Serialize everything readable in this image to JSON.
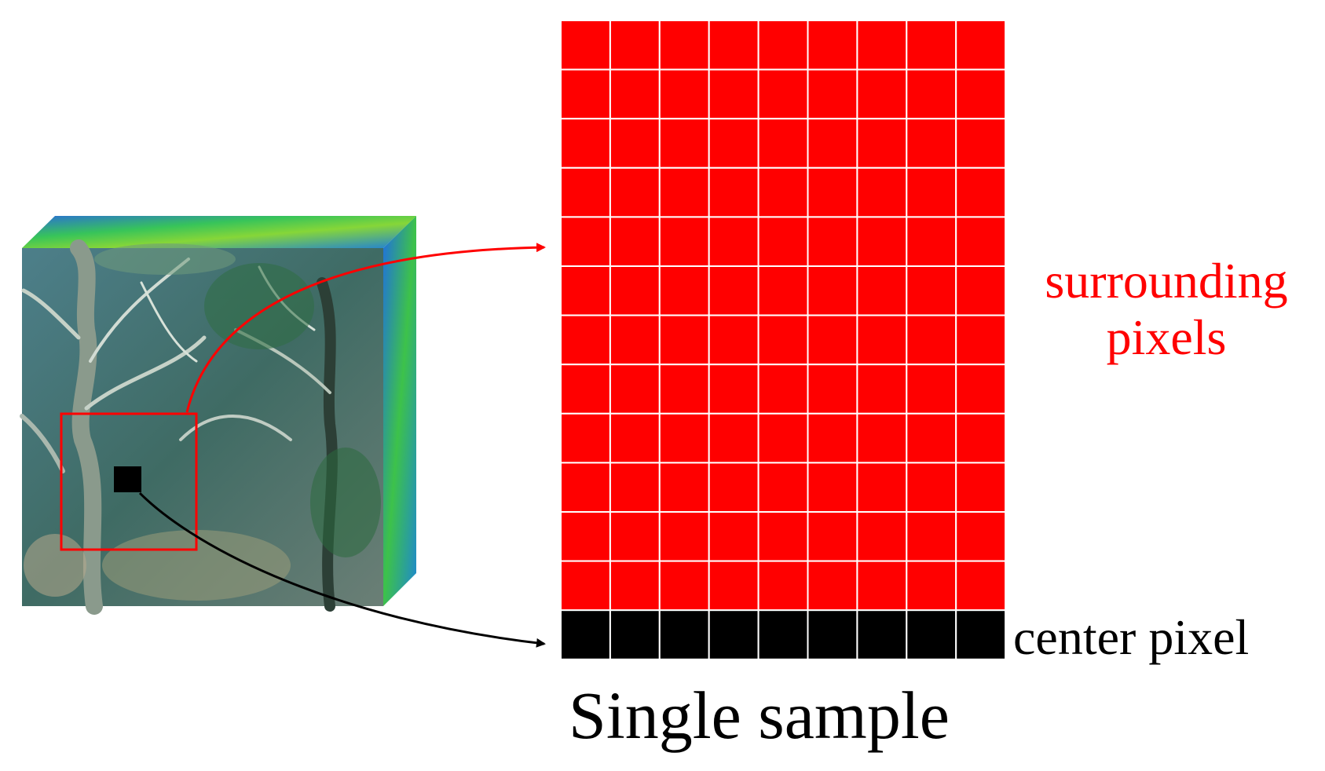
{
  "labels": {
    "surrounding_line1": "surrounding",
    "surrounding_line2": "pixels",
    "center_pixel": "center pixel",
    "caption": "Single sample"
  },
  "grid": {
    "columns": 9,
    "surrounding_rows": 12,
    "center_rows": 1
  },
  "colors": {
    "surrounding": "#ff0000",
    "center": "#000000",
    "grid_line": "#ffffff",
    "arrow_red": "#ff0000",
    "arrow_black": "#000000",
    "window_outline": "#ff0000",
    "label_red": "#ff0000",
    "label_black": "#000000"
  },
  "icons": {
    "cube": "hyperspectral-cube-icon",
    "window": "neighborhood-window-icon",
    "pixel": "center-pixel-icon"
  }
}
